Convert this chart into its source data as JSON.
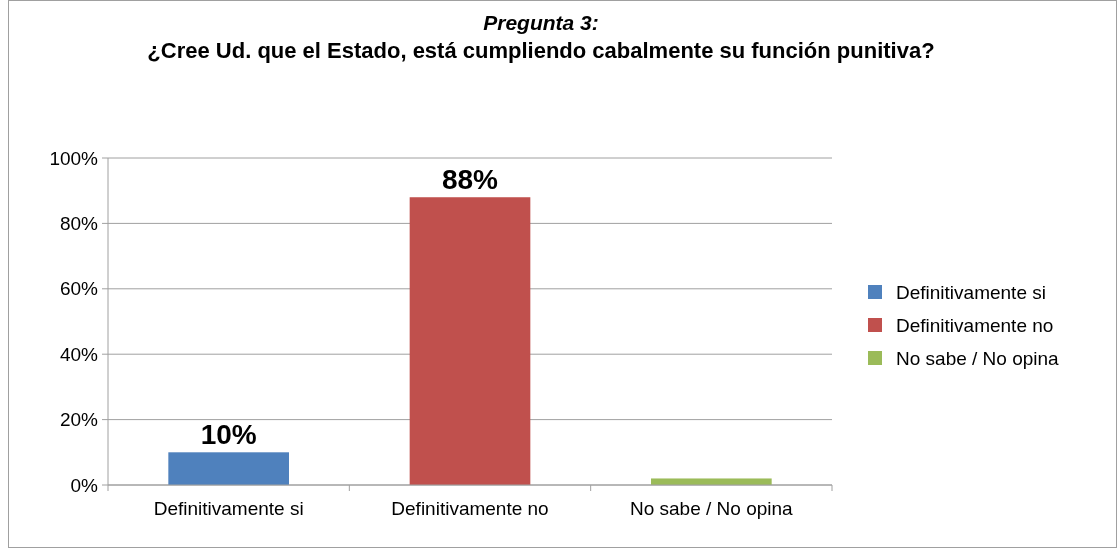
{
  "chart_data": {
    "type": "bar",
    "title": "Pregunta 3:",
    "subtitle": "¿Cree Ud. que el Estado, está cumpliendo cabalmente su función punitiva?",
    "categories": [
      "Definitivamente si",
      "Definitivamente no",
      "No sabe / No opina"
    ],
    "series": [
      {
        "name": "Definitivamente si",
        "color": "#4f81bd",
        "values": [
          10,
          null,
          null
        ],
        "value_labels": [
          "10%",
          null,
          null
        ]
      },
      {
        "name": "Definitivamente no",
        "color": "#c0504d",
        "values": [
          null,
          88,
          null
        ],
        "value_labels": [
          null,
          "88%",
          null
        ]
      },
      {
        "name": "No sabe / No opina",
        "color": "#9bbb59",
        "values": [
          null,
          null,
          2
        ],
        "value_labels": [
          null,
          null,
          null
        ]
      }
    ],
    "ylim": [
      0,
      100
    ],
    "yticks": [
      {
        "value": 0,
        "label": "0%"
      },
      {
        "value": 20,
        "label": "20%"
      },
      {
        "value": 40,
        "label": "40%"
      },
      {
        "value": 60,
        "label": "60%"
      },
      {
        "value": 80,
        "label": "80%"
      },
      {
        "value": 100,
        "label": "100%"
      }
    ],
    "grid": "y",
    "legend": "right"
  }
}
